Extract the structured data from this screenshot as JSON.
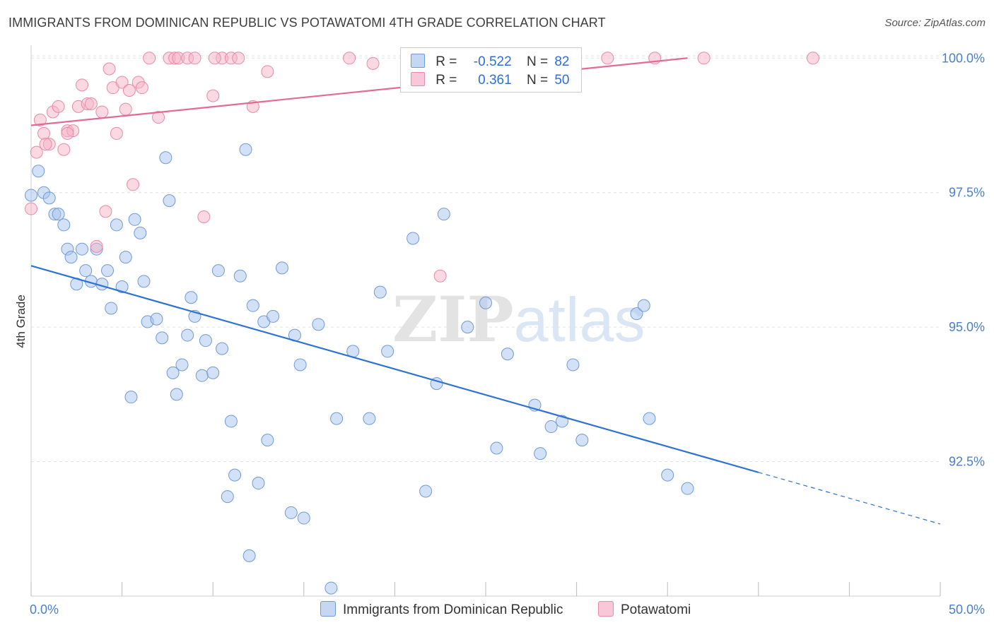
{
  "header": {
    "title": "IMMIGRANTS FROM DOMINICAN REPUBLIC VS POTAWATOMI 4TH GRADE CORRELATION CHART",
    "source": "Source: ZipAtlas.com"
  },
  "watermark": {
    "zip": "ZIP",
    "atlas": "atlas"
  },
  "legend": {
    "rows": [
      {
        "r_label": "R =",
        "r_value": "-0.522",
        "n_label": "N =",
        "n_value": "82",
        "color": "#a8c4ee"
      },
      {
        "r_label": "R =",
        "r_value": "0.361",
        "n_label": "N =",
        "n_value": "50",
        "color": "#f5b3c8"
      }
    ]
  },
  "chart_data": {
    "type": "scatter",
    "title": "IMMIGRANTS FROM DOMINICAN REPUBLIC VS POTAWATOMI 4TH GRADE CORRELATION CHART",
    "xlabel": "",
    "ylabel": "4th Grade",
    "xlim": [
      0,
      50
    ],
    "ylim": [
      90.0,
      100.24
    ],
    "x_tick_labels": [
      {
        "value": 0,
        "label": "0.0%"
      },
      {
        "value": 50,
        "label": "50.0%"
      }
    ],
    "y_tick_labels": [
      {
        "value": 100.0,
        "label": "100.0%"
      },
      {
        "value": 97.5,
        "label": "97.5%"
      },
      {
        "value": 95.0,
        "label": "95.0%"
      },
      {
        "value": 92.5,
        "label": "92.5%"
      }
    ],
    "grid": true,
    "series": [
      {
        "name": "Immigrants from Dominican Republic",
        "color": "#a8c4ee",
        "stroke": "#6f9ad8",
        "trend": {
          "x0": 0,
          "y0": 96.14,
          "x1": 40,
          "y1": 92.3,
          "dash_to_x": 50,
          "dash_to_y": 91.34,
          "color": "#2e72d2"
        },
        "points": [
          [
            0.4,
            97.9
          ],
          [
            0.0,
            97.45
          ],
          [
            0.7,
            97.5
          ],
          [
            1.0,
            97.4
          ],
          [
            1.3,
            97.1
          ],
          [
            1.5,
            97.1
          ],
          [
            1.8,
            96.9
          ],
          [
            2.0,
            96.45
          ],
          [
            2.2,
            96.3
          ],
          [
            2.5,
            95.8
          ],
          [
            2.8,
            96.45
          ],
          [
            3.0,
            96.05
          ],
          [
            3.3,
            95.85
          ],
          [
            3.6,
            96.45
          ],
          [
            3.9,
            95.8
          ],
          [
            4.2,
            96.05
          ],
          [
            4.4,
            95.35
          ],
          [
            4.7,
            96.9
          ],
          [
            5.0,
            95.75
          ],
          [
            5.2,
            96.3
          ],
          [
            5.5,
            93.7
          ],
          [
            5.7,
            97.0
          ],
          [
            6.0,
            96.75
          ],
          [
            6.2,
            95.85
          ],
          [
            6.4,
            95.1
          ],
          [
            6.9,
            95.15
          ],
          [
            7.2,
            94.8
          ],
          [
            7.4,
            98.15
          ],
          [
            7.6,
            97.35
          ],
          [
            7.8,
            94.15
          ],
          [
            8.0,
            93.75
          ],
          [
            8.3,
            94.3
          ],
          [
            8.6,
            94.85
          ],
          [
            8.8,
            95.55
          ],
          [
            9.0,
            95.2
          ],
          [
            9.4,
            94.1
          ],
          [
            9.6,
            94.75
          ],
          [
            10.0,
            94.15
          ],
          [
            10.3,
            96.05
          ],
          [
            10.5,
            94.6
          ],
          [
            10.8,
            91.85
          ],
          [
            11.0,
            93.25
          ],
          [
            11.2,
            92.25
          ],
          [
            11.5,
            95.95
          ],
          [
            11.8,
            98.3
          ],
          [
            12.0,
            90.75
          ],
          [
            12.2,
            95.4
          ],
          [
            12.5,
            92.1
          ],
          [
            12.8,
            95.1
          ],
          [
            13.0,
            92.9
          ],
          [
            13.3,
            95.2
          ],
          [
            13.8,
            96.1
          ],
          [
            14.3,
            91.55
          ],
          [
            14.5,
            94.85
          ],
          [
            14.8,
            94.3
          ],
          [
            15.0,
            91.45
          ],
          [
            15.8,
            95.05
          ],
          [
            16.5,
            90.15
          ],
          [
            16.8,
            93.3
          ],
          [
            17.7,
            94.55
          ],
          [
            18.6,
            93.3
          ],
          [
            19.2,
            95.65
          ],
          [
            19.6,
            94.55
          ],
          [
            21.0,
            96.65
          ],
          [
            21.7,
            91.95
          ],
          [
            22.3,
            93.95
          ],
          [
            22.7,
            97.1
          ],
          [
            24.0,
            95.0
          ],
          [
            25.0,
            95.45
          ],
          [
            25.6,
            92.75
          ],
          [
            26.2,
            94.5
          ],
          [
            27.7,
            93.55
          ],
          [
            28.0,
            92.65
          ],
          [
            28.6,
            93.15
          ],
          [
            29.2,
            93.25
          ],
          [
            29.8,
            94.3
          ],
          [
            30.3,
            92.9
          ],
          [
            33.3,
            95.25
          ],
          [
            33.7,
            95.4
          ],
          [
            34.0,
            93.3
          ],
          [
            35.0,
            92.25
          ],
          [
            36.1,
            92.0
          ]
        ]
      },
      {
        "name": "Potawatomi",
        "color": "#f5b3c8",
        "stroke": "#e88aa8",
        "trend": {
          "x0": 0,
          "y0": 98.75,
          "x1": 36.1,
          "y1": 100.0,
          "color": "#e46a93"
        },
        "points": [
          [
            0.0,
            97.2
          ],
          [
            0.3,
            98.25
          ],
          [
            0.5,
            98.85
          ],
          [
            0.7,
            98.6
          ],
          [
            1.0,
            98.4
          ],
          [
            1.2,
            99.0
          ],
          [
            1.5,
            99.1
          ],
          [
            1.8,
            98.3
          ],
          [
            2.0,
            98.65
          ],
          [
            2.3,
            98.65
          ],
          [
            2.6,
            99.1
          ],
          [
            2.8,
            99.5
          ],
          [
            3.1,
            99.15
          ],
          [
            3.3,
            99.15
          ],
          [
            3.6,
            96.5
          ],
          [
            3.9,
            99.0
          ],
          [
            4.1,
            97.15
          ],
          [
            4.3,
            99.8
          ],
          [
            4.5,
            99.45
          ],
          [
            4.7,
            98.6
          ],
          [
            5.0,
            99.55
          ],
          [
            5.2,
            99.05
          ],
          [
            5.4,
            99.4
          ],
          [
            5.6,
            97.65
          ],
          [
            5.9,
            99.55
          ],
          [
            6.1,
            99.45
          ],
          [
            7.0,
            98.9
          ],
          [
            7.6,
            100.0
          ],
          [
            7.9,
            100.0
          ],
          [
            8.1,
            100.0
          ],
          [
            8.6,
            100.0
          ],
          [
            9.0,
            100.0
          ],
          [
            9.5,
            97.05
          ],
          [
            10.0,
            99.3
          ],
          [
            10.5,
            100.0
          ],
          [
            11.0,
            100.0
          ],
          [
            11.4,
            100.0
          ],
          [
            12.2,
            99.1
          ],
          [
            13.0,
            99.75
          ],
          [
            17.5,
            100.0
          ],
          [
            18.8,
            99.9
          ],
          [
            22.5,
            95.95
          ],
          [
            31.7,
            100.0
          ],
          [
            34.3,
            100.0
          ],
          [
            37.0,
            100.0
          ],
          [
            43.0,
            100.0
          ],
          [
            10.1,
            100.0
          ],
          [
            6.5,
            100.0
          ],
          [
            2.0,
            98.6
          ],
          [
            0.8,
            98.4
          ]
        ]
      }
    ]
  },
  "bottom_legend": {
    "items": [
      {
        "label": "Immigrants from Dominican Republic",
        "color": "#a8c4ee"
      },
      {
        "label": "Potawatomi",
        "color": "#f5b3c8"
      }
    ]
  }
}
